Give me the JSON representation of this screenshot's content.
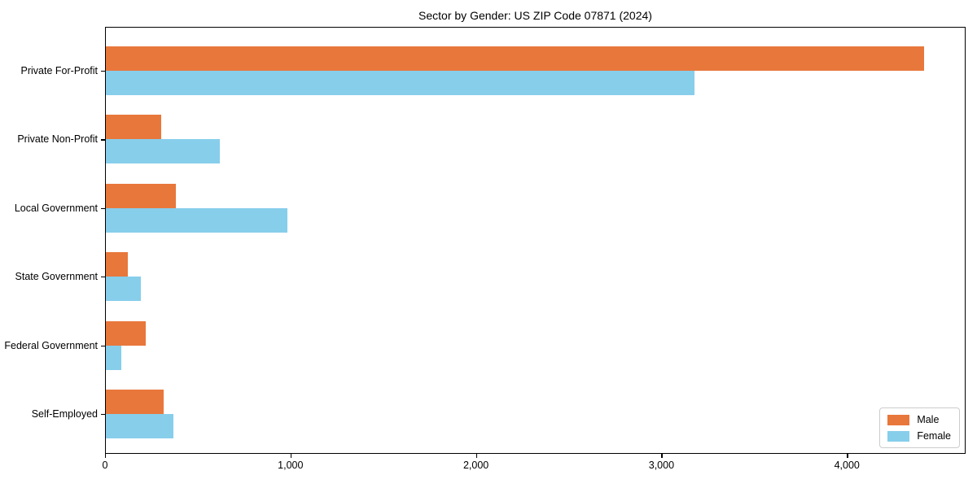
{
  "chart_data": {
    "type": "bar",
    "orientation": "horizontal",
    "title": "Sector by Gender: US ZIP Code 07871 (2024)",
    "categories": [
      "Private For-Profit",
      "Private Non-Profit",
      "Local Government",
      "State Government",
      "Federal Government",
      "Self-Employed"
    ],
    "series": [
      {
        "name": "Male",
        "color": "#e8773b",
        "values": [
          4417,
          303,
          382,
          123,
          220,
          316
        ]
      },
      {
        "name": "Female",
        "color": "#87ceeb",
        "values": [
          3179,
          619,
          984,
          193,
          88,
          369
        ]
      }
    ],
    "xlabel": "",
    "ylabel": "",
    "xlim": [
      0,
      4640
    ],
    "xticks": {
      "values": [
        0,
        1000,
        2000,
        3000,
        4000
      ],
      "labels": [
        "0",
        "1,000",
        "2,000",
        "3,000",
        "4,000"
      ]
    },
    "grid": false,
    "legend": {
      "position": "lower right",
      "entries": [
        "Male",
        "Female"
      ]
    },
    "background": "#ffffff",
    "spine_color": "#000000"
  }
}
